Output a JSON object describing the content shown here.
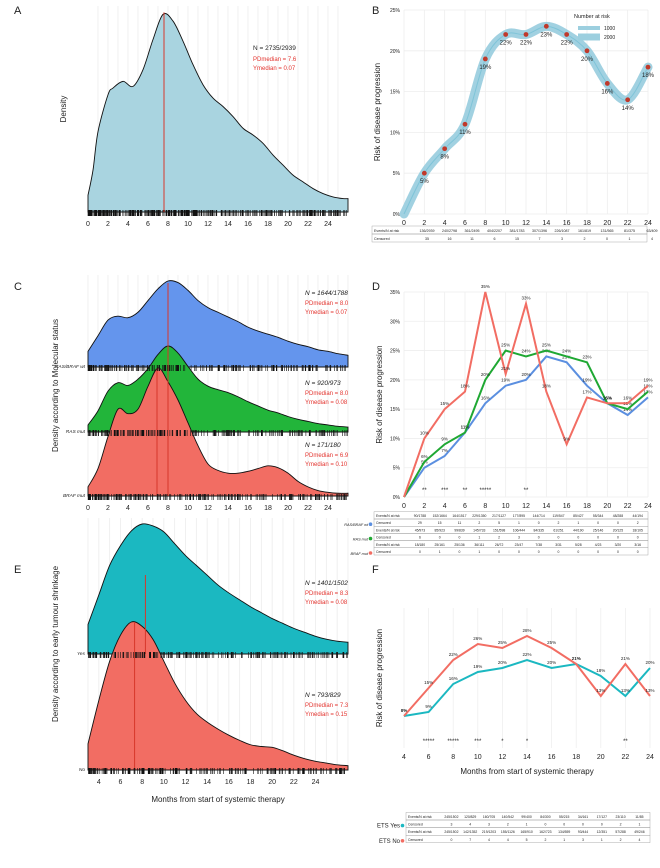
{
  "figure": {
    "panel_labels": [
      "A",
      "B",
      "C",
      "D",
      "E",
      "F"
    ]
  },
  "chart_data": [
    {
      "panel": "A",
      "type": "density",
      "ylabel": "Density",
      "xlabel": "",
      "x_ticks": [
        "0",
        "2",
        "4",
        "6",
        "8",
        "10",
        "12",
        "14",
        "16",
        "18",
        "20",
        "22",
        "24"
      ],
      "xlim": [
        0,
        26
      ],
      "stats_n": "N = 2735/2939",
      "stats_pd": "PDmedian = 7.6",
      "stats_y": "Ymedian = 0.07",
      "median_x": 7.6,
      "color": "#a9d4e0",
      "curve_x": [
        0,
        0.5,
        1,
        2,
        2.5,
        3.5,
        4.5,
        5.5,
        6.5,
        7.5,
        8.5,
        9.5,
        10.5,
        11.5,
        12.5,
        13.5,
        14.5,
        15.5,
        16.5,
        17.5,
        18.5,
        19.5,
        20.5,
        21.5,
        22.5,
        23.5,
        24.5,
        25.5,
        26
      ],
      "curve_y": [
        0.01,
        0.025,
        0.048,
        0.07,
        0.074,
        0.078,
        0.075,
        0.085,
        0.103,
        0.118,
        0.114,
        0.102,
        0.088,
        0.076,
        0.068,
        0.063,
        0.057,
        0.05,
        0.046,
        0.041,
        0.034,
        0.028,
        0.022,
        0.018,
        0.014,
        0.011,
        0.009,
        0.008,
        0.008
      ],
      "ymax": 0.123
    },
    {
      "panel": "B",
      "type": "line",
      "title": "",
      "xlabel": "",
      "ylabel": "Risk of disease progression",
      "x": [
        0,
        2,
        4,
        6,
        8,
        10,
        12,
        14,
        16,
        18,
        20,
        22,
        24
      ],
      "values": [
        0,
        5,
        8,
        11,
        19,
        22,
        22,
        23,
        22,
        20,
        16,
        14,
        18
      ],
      "point_labels": [
        "",
        "5%",
        "8%",
        "11%",
        "19%",
        "22%",
        "22%",
        "23%",
        "22%",
        "20%",
        "16%",
        "14%",
        "18%"
      ],
      "y_ticks": [
        "0%",
        "5%",
        "10%",
        "15%",
        "20%",
        "25%"
      ],
      "ylim": [
        0,
        25
      ],
      "legend_title": "Number at risk",
      "legend_items": [
        "1000",
        "2000"
      ],
      "table_rows": [
        {
          "label": "Events/N at risk",
          "cells": [
            "136/2939",
            "240/2798",
            "361/2495",
            "404/2207",
            "381/1783",
            "307/1396",
            "226/1087",
            "161/819",
            "131/565",
            "81/375",
            "63/409",
            "35/363"
          ]
        },
        {
          "label": "Censored",
          "cells": [
            "35",
            "16",
            "11",
            "6",
            "15",
            "7",
            "3",
            "2",
            "0",
            "1",
            "4",
            "1"
          ]
        }
      ],
      "color_line": "#9ccfdf",
      "color_point": "#c0392b"
    },
    {
      "panel": "C",
      "type": "ridgeline",
      "ylabel": "Density according to Molecular status",
      "x_ticks": [
        "0",
        "2",
        "4",
        "6",
        "8",
        "10",
        "12",
        "14",
        "16",
        "18",
        "20",
        "22",
        "24"
      ],
      "xlim": [
        0,
        26
      ],
      "groups": [
        {
          "name": "RAS/BRAF wt",
          "color": "#6495ed",
          "n": "N = 1644/1788",
          "pd": "PDmedian = 8.0",
          "y": "Ymedian = 0.07",
          "curve_x": [
            0,
            1,
            2,
            3,
            4,
            5,
            6,
            7,
            8,
            9,
            10,
            11,
            12,
            13,
            14,
            15,
            16,
            17,
            18,
            19,
            20,
            21,
            22,
            23,
            24,
            25,
            26
          ],
          "curve_y": [
            0.02,
            0.04,
            0.06,
            0.065,
            0.063,
            0.07,
            0.085,
            0.1,
            0.11,
            0.108,
            0.098,
            0.085,
            0.076,
            0.07,
            0.064,
            0.058,
            0.051,
            0.046,
            0.042,
            0.038,
            0.033,
            0.029,
            0.026,
            0.022,
            0.02,
            0.017,
            0.015
          ]
        },
        {
          "name": "RAS mut",
          "color": "#22b53a",
          "n": "N = 920/973",
          "pd": "PDmedian = 8.0",
          "y": "Ymedian = 0.08",
          "curve_x": [
            0,
            1,
            2,
            3,
            4,
            5,
            6,
            7,
            8,
            9,
            10,
            11,
            12,
            13,
            14,
            15,
            16,
            17,
            18,
            19,
            20,
            21,
            22,
            23,
            24,
            25,
            26
          ],
          "curve_y": [
            0.01,
            0.03,
            0.058,
            0.07,
            0.066,
            0.075,
            0.09,
            0.11,
            0.122,
            0.112,
            0.093,
            0.075,
            0.065,
            0.06,
            0.056,
            0.05,
            0.043,
            0.037,
            0.031,
            0.027,
            0.022,
            0.018,
            0.015,
            0.012,
            0.01,
            0.008,
            0.007
          ]
        },
        {
          "name": "BRAF mut",
          "color": "#f26d63",
          "n": "N = 171/180",
          "pd": "PDmedian = 6.9",
          "y": "Ymedian = 0.10",
          "curve_x": [
            0,
            1,
            2,
            3,
            4,
            5,
            6,
            7,
            8,
            9,
            10,
            11,
            12,
            13,
            14,
            15,
            16,
            17,
            18,
            19,
            20,
            21,
            22,
            23,
            24,
            25,
            26
          ],
          "curve_y": [
            0.01,
            0.03,
            0.065,
            0.095,
            0.09,
            0.095,
            0.12,
            0.14,
            0.125,
            0.105,
            0.08,
            0.055,
            0.035,
            0.028,
            0.025,
            0.025,
            0.027,
            0.03,
            0.033,
            0.031,
            0.025,
            0.016,
            0.01,
            0.006,
            0.004,
            0.003,
            0.003
          ]
        }
      ]
    },
    {
      "panel": "D",
      "type": "line",
      "ylabel": "Risk of disease progression",
      "x": [
        0,
        2,
        4,
        6,
        8,
        10,
        12,
        14,
        16,
        18,
        20,
        22,
        24
      ],
      "y_ticks": [
        "0%",
        "5%",
        "10%",
        "15%",
        "20%",
        "25%",
        "30%",
        "35%"
      ],
      "ylim": [
        0,
        35
      ],
      "series": [
        {
          "name": "RAS/BRAF wt",
          "color": "#5b8fe0",
          "values": [
            0,
            5,
            7,
            11,
            16,
            19,
            20,
            24,
            23,
            19,
            16,
            14,
            17
          ],
          "labels": [
            "",
            "5%",
            "7%",
            "11%",
            "16%",
            "19%",
            "20%",
            "24%",
            "23%",
            "19%",
            "16%",
            "14%",
            "17%"
          ]
        },
        {
          "name": "RAS mut",
          "color": "#1fa833",
          "values": [
            0,
            6,
            9,
            11,
            20,
            25,
            24,
            25,
            24,
            23,
            16,
            15,
            18
          ],
          "labels": [
            "",
            "6%",
            "9%",
            "11%",
            "20%",
            "25%",
            "24%",
            "25%",
            "24%",
            "23%",
            "16%",
            "15%",
            "18%"
          ]
        },
        {
          "name": "BRAF mut",
          "color": "#f26d63",
          "values": [
            0,
            10,
            15,
            18,
            35,
            21,
            33,
            18,
            9,
            17,
            16,
            16,
            19
          ],
          "labels": [
            "",
            "10%",
            "15%",
            "18%",
            "35%",
            "21%",
            "33%",
            "18%",
            "9%",
            "17%",
            "16%",
            "16%",
            "19%"
          ]
        }
      ],
      "significance": [
        {
          "x": 2,
          "text": "**"
        },
        {
          "x": 4,
          "text": "***"
        },
        {
          "x": 6,
          "text": "**"
        },
        {
          "x": 8,
          "text": "*****"
        },
        {
          "x": 12,
          "text": "**"
        }
      ],
      "table_groups": [
        {
          "label": "RAS/BRAF wt",
          "rows": [
            {
              "label": "Events/N at risk",
              "cells": [
                "90/1788",
                "152/1664",
                "164/1517",
                "229/1350",
                "217/1127",
                "177/895",
                "144/714",
                "119/547",
                "85/427",
                "55/344",
                "48/288",
                "44/194"
              ]
            },
            {
              "label": "Censored",
              "cells": [
                "29",
                "15",
                "11",
                "2",
                "5",
                "1",
                "0",
                "2",
                "1",
                "0",
                "0",
                "2"
              ]
            }
          ]
        },
        {
          "label": "RAS mut",
          "rows": [
            {
              "label": "Events/N at risk",
              "cells": [
                "45/973",
                "85/923",
                "99/839",
                "145/733",
                "151/598",
                "106/444",
                "84/335",
                "61/251",
                "44/190",
                "25/146",
                "20/125",
                "18/105"
              ]
            },
            {
              "label": "Censored",
              "cells": [
                "6",
                "0",
                "0",
                "1",
                "2",
                "3",
                "0",
                "0",
                "0",
                "0",
                "0",
                "0"
              ]
            }
          ]
        },
        {
          "label": "BRAF mut",
          "rows": [
            {
              "label": "Events/N at risk",
              "cells": [
                "18/180",
                "25/161",
                "25/136",
                "36/111",
                "26/72",
                "23/47",
                "7/38",
                "3/31",
                "5/28",
                "4/23",
                "3/20",
                "3/16"
              ]
            },
            {
              "label": "Censored",
              "cells": [
                "0",
                "1",
                "0",
                "1",
                "0",
                "0",
                "0",
                "0",
                "0",
                "0",
                "0",
                "0"
              ]
            }
          ]
        }
      ]
    },
    {
      "panel": "E",
      "type": "ridgeline",
      "ylabel": "Density according to early tumour shrinkage",
      "xlabel": "Months from start of systemic therapy",
      "x_ticks": [
        "4",
        "6",
        "8",
        "10",
        "12",
        "14",
        "16",
        "18",
        "20",
        "22",
        "24"
      ],
      "xlim": [
        3,
        27
      ],
      "groups": [
        {
          "name": "Yes",
          "color": "#1bb8c1",
          "n": "N = 1401/1502",
          "pd": "PDmedian = 8.3",
          "y": "Ymedian = 0.08",
          "curve_x": [
            3,
            4,
            5,
            6,
            7,
            8,
            9,
            10,
            11,
            12,
            13,
            14,
            15,
            16,
            17,
            18,
            19,
            20,
            21,
            22,
            23,
            24,
            25,
            26,
            27
          ],
          "curve_y": [
            0.03,
            0.06,
            0.09,
            0.11,
            0.125,
            0.132,
            0.13,
            0.124,
            0.112,
            0.1,
            0.09,
            0.08,
            0.07,
            0.062,
            0.055,
            0.048,
            0.042,
            0.036,
            0.031,
            0.026,
            0.022,
            0.018,
            0.015,
            0.013,
            0.012
          ]
        },
        {
          "name": "No",
          "color": "#f26d63",
          "n": "N = 793/829",
          "pd": "PDmedian = 7.3",
          "y": "Ymedian = 0.15",
          "curve_x": [
            3,
            4,
            5,
            6,
            7,
            8,
            9,
            10,
            11,
            12,
            13,
            14,
            15,
            16,
            17,
            18,
            19,
            20,
            21,
            22,
            23,
            24,
            25,
            26,
            27
          ],
          "curve_y": [
            0.03,
            0.08,
            0.125,
            0.155,
            0.17,
            0.165,
            0.15,
            0.125,
            0.1,
            0.08,
            0.065,
            0.055,
            0.047,
            0.04,
            0.034,
            0.029,
            0.027,
            0.026,
            0.022,
            0.017,
            0.013,
            0.01,
            0.008,
            0.006,
            0.005
          ]
        }
      ]
    },
    {
      "panel": "F",
      "type": "line",
      "ylabel": "Risk of disease progression",
      "xlabel": "Months from start of systemic therapy",
      "x": [
        4,
        6,
        8,
        10,
        12,
        14,
        16,
        18,
        20,
        22,
        24
      ],
      "ylim": [
        0,
        35
      ],
      "series": [
        {
          "name": "ETS Yes",
          "color": "#1bb8c1",
          "values": [
            8,
            9,
            16,
            19,
            20,
            22,
            20,
            21,
            18,
            13,
            20
          ],
          "labels": [
            "8%",
            "9%",
            "16%",
            "19%",
            "20%",
            "22%",
            "20%",
            "21%",
            "18%",
            "13%",
            "20%"
          ]
        },
        {
          "name": "ETS No",
          "color": "#f26d63",
          "values": [
            8,
            15,
            22,
            26,
            25,
            28,
            25,
            21,
            13,
            21,
            13
          ],
          "labels": [
            "8%",
            "15%",
            "22%",
            "26%",
            "25%",
            "28%",
            "25%",
            "21%",
            "13%",
            "21%",
            "13%"
          ]
        }
      ],
      "significance": [
        {
          "x": 6,
          "text": "*****"
        },
        {
          "x": 8,
          "text": "*****"
        },
        {
          "x": 10,
          "text": "***"
        },
        {
          "x": 12,
          "text": "*"
        },
        {
          "x": 14,
          "text": "*"
        },
        {
          "x": 22,
          "text": "**"
        }
      ],
      "table_groups": [
        {
          "label": "ETS Yes",
          "rows": [
            {
              "label": "Events/N at risk",
              "cells": [
                "245/1502",
                "120/829",
                "160/705",
                "140/542",
                "99/400",
                "84/300",
                "55/215",
                "34/161",
                "17/127",
                "23/110",
                "11/85"
              ]
            },
            {
              "label": "Censored",
              "cells": [
                "3",
                "4",
                "3",
                "2",
                "1",
                "0",
                "0",
                "0",
                "0",
                "2",
                "1"
              ]
            }
          ]
        },
        {
          "label": "ETS No",
          "rows": [
            {
              "label": "Events/N at risk",
              "cells": [
                "245/1502",
                "142/1352",
                "219/1203",
                "155/1126",
                "165/910",
                "162/723",
                "134/559",
                "93/444",
                "12/351",
                "57/288",
                "49/246"
              ]
            },
            {
              "label": "Censored",
              "cells": [
                "0",
                "7",
                "4",
                "4",
                "5",
                "2",
                "1",
                "3",
                "1",
                "2",
                "4"
              ]
            }
          ]
        }
      ]
    }
  ]
}
